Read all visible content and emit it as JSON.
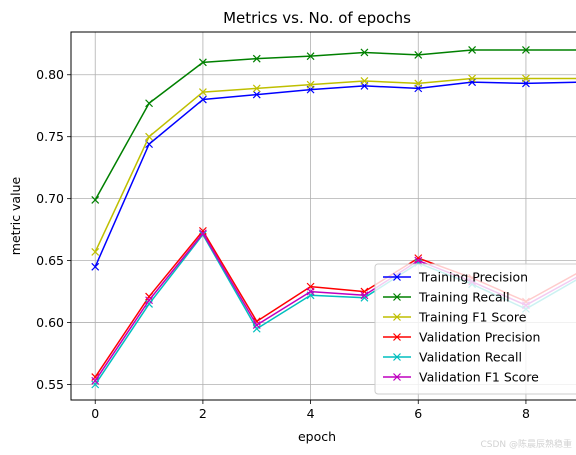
{
  "chart_data": {
    "type": "line",
    "title": "Metrics vs. No. of epochs",
    "xlabel": "epoch",
    "ylabel": "metric value",
    "xlim": [
      -0.45,
      9.45
    ],
    "ylim": [
      0.5375,
      0.8345
    ],
    "xticks": [
      0,
      2,
      4,
      6,
      8
    ],
    "yticks": [
      0.55,
      0.6,
      0.65,
      0.7,
      0.75,
      0.8
    ],
    "grid": true,
    "legend_position": "lower-right",
    "marker": "x",
    "x": [
      0,
      1,
      2,
      3,
      4,
      5,
      6,
      7,
      8,
      9
    ],
    "series": [
      {
        "name": "Training Precision",
        "color": "#0000ff",
        "values": [
          0.645,
          0.744,
          0.78,
          0.784,
          0.788,
          0.791,
          0.789,
          0.794,
          0.793,
          0.794
        ]
      },
      {
        "name": "Training Recall",
        "color": "#008000",
        "values": [
          0.699,
          0.777,
          0.81,
          0.813,
          0.815,
          0.818,
          0.816,
          0.82,
          0.82,
          0.82
        ]
      },
      {
        "name": "Training F1 Score",
        "color": "#bfbf00",
        "values": [
          0.657,
          0.75,
          0.786,
          0.789,
          0.792,
          0.795,
          0.793,
          0.797,
          0.797,
          0.797
        ]
      },
      {
        "name": "Validation Precision",
        "color": "#ff0000",
        "values": [
          0.556,
          0.621,
          0.674,
          0.601,
          0.629,
          0.625,
          0.652,
          0.636,
          0.617,
          0.641
        ]
      },
      {
        "name": "Validation Recall",
        "color": "#00bfbf",
        "values": [
          0.55,
          0.615,
          0.671,
          0.595,
          0.622,
          0.62,
          0.648,
          0.631,
          0.611,
          0.636
        ]
      },
      {
        "name": "Validation F1 Score",
        "color": "#bf00bf",
        "values": [
          0.553,
          0.618,
          0.672,
          0.598,
          0.625,
          0.622,
          0.65,
          0.633,
          0.614,
          0.638
        ]
      }
    ]
  },
  "watermark": "CSDN @陈晨辰熟稳重"
}
